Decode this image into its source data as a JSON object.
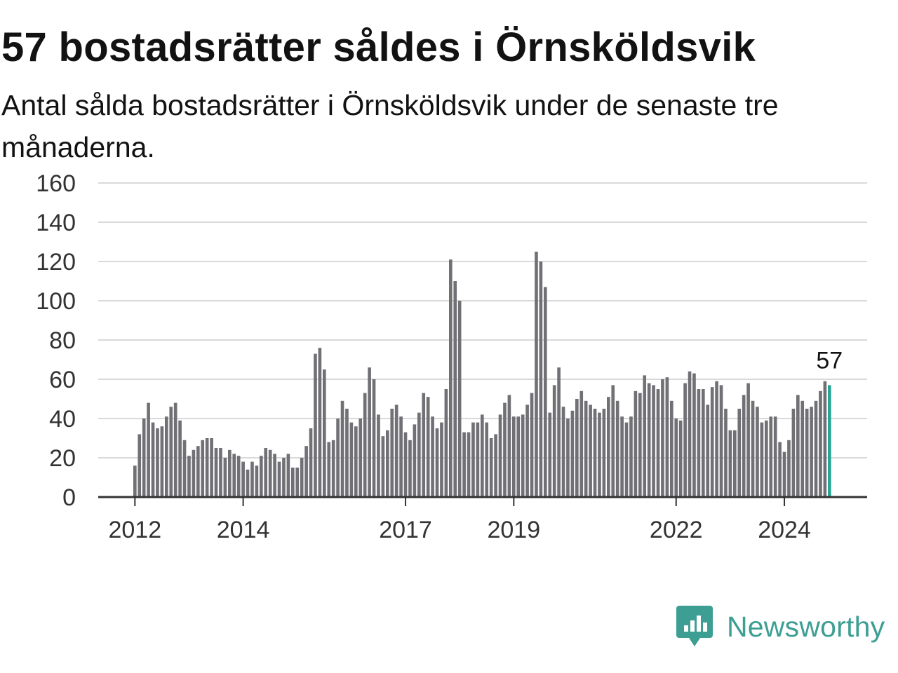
{
  "title": "57 bostadsrätter såldes i Örnsköldsvik",
  "subtitle": "Antal sålda bostadsrätter i Örnsköldsvik under de senaste tre månaderna.",
  "brand": {
    "name": "Newsworthy",
    "color": "#3d9e93",
    "icon": "newsworthy-logo-icon"
  },
  "chart_data": {
    "type": "bar",
    "title": "57 bostadsrätter såldes i Örnsköldsvik",
    "xlabel": "",
    "ylabel": "",
    "ylim": [
      0,
      160
    ],
    "yticks": [
      0,
      20,
      40,
      60,
      80,
      100,
      120,
      140,
      160
    ],
    "xtick_labels": [
      "2012",
      "2014",
      "2017",
      "2019",
      "2022",
      "2024"
    ],
    "grid": true,
    "bar_color": "#707075",
    "highlight_color": "#27a596",
    "highlight_label": "57",
    "values": [
      16,
      32,
      40,
      48,
      38,
      35,
      36,
      41,
      46,
      48,
      39,
      29,
      21,
      24,
      26,
      29,
      30,
      30,
      25,
      25,
      20,
      24,
      22,
      21,
      18,
      14,
      18,
      16,
      21,
      25,
      24,
      22,
      18,
      20,
      22,
      15,
      15,
      20,
      26,
      35,
      73,
      76,
      65,
      28,
      29,
      40,
      49,
      45,
      38,
      36,
      40,
      53,
      66,
      60,
      42,
      31,
      34,
      45,
      47,
      41,
      33,
      29,
      37,
      43,
      53,
      51,
      41,
      35,
      38,
      55,
      121,
      110,
      100,
      33,
      33,
      38,
      38,
      42,
      38,
      30,
      32,
      42,
      48,
      52,
      41,
      41,
      42,
      47,
      53,
      125,
      120,
      107,
      43,
      57,
      66,
      46,
      40,
      44,
      50,
      54,
      49,
      47,
      45,
      43,
      45,
      51,
      57,
      49,
      41,
      38,
      41,
      54,
      53,
      62,
      58,
      57,
      55,
      60,
      61,
      49,
      40,
      39,
      58,
      64,
      63,
      55,
      55,
      47,
      56,
      59,
      57,
      45,
      34,
      34,
      45,
      52,
      58,
      49,
      46,
      38,
      39,
      41,
      41,
      28,
      23,
      29,
      45,
      52,
      49,
      45,
      46,
      49,
      54,
      59,
      57
    ]
  }
}
